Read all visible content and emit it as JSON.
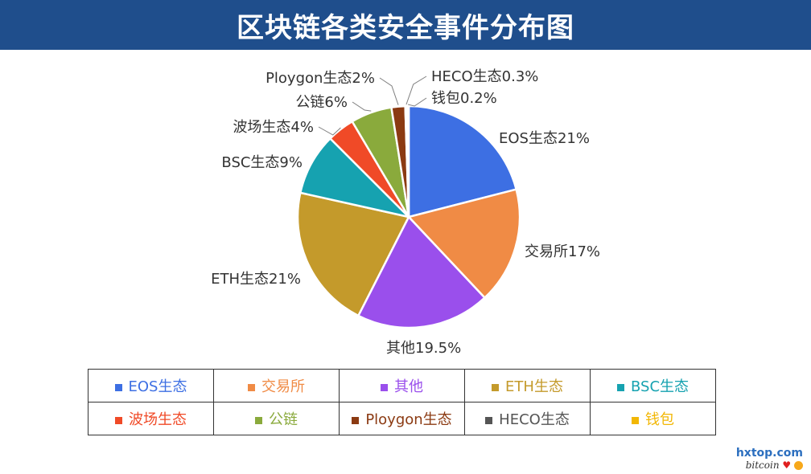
{
  "header": {
    "title": "区块链各类安全事件分布图"
  },
  "chart_data": {
    "type": "pie",
    "title": "区块链各类安全事件分布图",
    "slices": [
      {
        "name": "EOS生态",
        "value": 21,
        "label": "EOS生态21%",
        "color": "#3d6fe3"
      },
      {
        "name": "交易所",
        "value": 17,
        "label": "交易所17%",
        "color": "#f08b45"
      },
      {
        "name": "其他",
        "value": 19.5,
        "label": "其他19.5%",
        "color": "#9a4fec"
      },
      {
        "name": "ETH生态",
        "value": 21,
        "label": "ETH生态21%",
        "color": "#c49a2b"
      },
      {
        "name": "BSC生态",
        "value": 9,
        "label": "BSC生态9%",
        "color": "#16a2b0"
      },
      {
        "name": "波场生态",
        "value": 4,
        "label": "波场生态4%",
        "color": "#f04a27"
      },
      {
        "name": "公链",
        "value": 6,
        "label": "公链6%",
        "color": "#8aaa3c"
      },
      {
        "name": "Ploygon生态",
        "value": 2,
        "label": "Ploygon生态2%",
        "color": "#8b3a12"
      },
      {
        "name": "HECO生态",
        "value": 0.3,
        "label": "HECO生态0.3%",
        "color": "#555555"
      },
      {
        "name": "钱包",
        "value": 0.2,
        "label": "钱包0.2%",
        "color": "#f2b705"
      }
    ],
    "legend_position": "bottom"
  },
  "legend": {
    "rows": [
      [
        {
          "label": "EOS生态",
          "color": "#3d6fe3"
        },
        {
          "label": "交易所",
          "color": "#f08b45"
        },
        {
          "label": "其他",
          "color": "#9a4fec"
        },
        {
          "label": "ETH生态",
          "color": "#c49a2b"
        },
        {
          "label": "BSC生态",
          "color": "#16a2b0"
        }
      ],
      [
        {
          "label": "波场生态",
          "color": "#f04a27"
        },
        {
          "label": "公链",
          "color": "#8aaa3c"
        },
        {
          "label": "Ploygon生态",
          "color": "#8b3a12"
        },
        {
          "label": "HECO生态",
          "color": "#555555"
        },
        {
          "label": "钱包",
          "color": "#f2b705"
        }
      ]
    ]
  },
  "watermark": {
    "site": "hxtop.com",
    "brand": "bitcoin"
  }
}
